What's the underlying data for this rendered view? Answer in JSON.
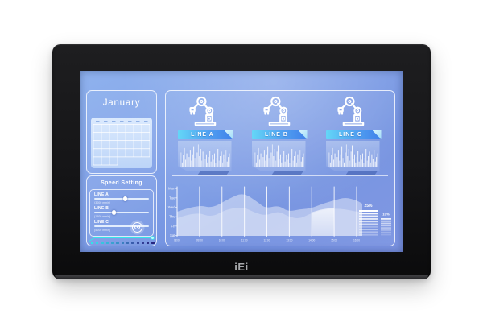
{
  "brand": {
    "logo_text": "iEi"
  },
  "screen": {
    "calendar": {
      "title": "January"
    },
    "speed_setting": {
      "title": "Speed Setting",
      "accent_color": "#35e6ea",
      "sliders": [
        {
          "label": "LINE A",
          "sub_label": "(3000 mm/s)",
          "value_pct": 57,
          "thumb": "dot"
        },
        {
          "label": "LINE B",
          "sub_label": "(1500 mm/s)",
          "value_pct": 36,
          "thumb": "dot"
        },
        {
          "label": "LINE C",
          "sub_label": "(5000 mm/s)",
          "value_pct": 77,
          "thumb": "target"
        }
      ],
      "progress_dot_colors": [
        "#30e5e9",
        "#31d8e5",
        "#33c8df",
        "#35b6d8",
        "#37a4d0",
        "#3992c8",
        "#3a80c0",
        "#3a6eb6",
        "#385cab",
        "#354b9f",
        "#303b93",
        "#2b2f88",
        "#26257e"
      ]
    },
    "stations": [
      {
        "label": "LINE A"
      },
      {
        "label": "LINE B"
      },
      {
        "label": "LINE C"
      }
    ],
    "station_histogram": [
      9,
      16,
      5,
      13,
      21,
      8,
      15,
      4,
      11,
      19,
      7,
      14,
      23,
      10,
      5,
      16,
      25,
      12,
      20,
      7,
      17,
      24,
      9,
      14,
      5,
      11,
      18,
      6,
      13,
      8,
      15,
      4,
      10,
      20,
      7,
      12,
      17,
      5,
      14,
      9,
      19,
      6,
      11,
      15
    ]
  },
  "chart_data": {
    "type": "area",
    "title": "",
    "y_categories": [
      "Mon",
      "Tue",
      "Wed",
      "Thu",
      "Fri",
      "Sat"
    ],
    "x_ticks": [
      "08:00",
      "09:00",
      "10:00",
      "11:00",
      "12:00",
      "13:00",
      "14:00",
      "15:00",
      "16:00"
    ],
    "grid": true,
    "legend": false,
    "series": [
      {
        "name": "back_wave",
        "fill_opacity": 0.42,
        "points": [
          [
            12,
            34
          ],
          [
            38,
            25
          ],
          [
            55,
            30
          ],
          [
            76,
            18
          ],
          [
            94,
            10
          ],
          [
            112,
            22
          ],
          [
            122,
            30
          ],
          [
            138,
            26
          ],
          [
            150,
            34
          ],
          [
            164,
            31
          ],
          [
            178,
            30
          ],
          [
            193,
            24
          ],
          [
            207,
            20
          ],
          [
            221,
            16
          ],
          [
            235,
            20
          ],
          [
            242,
            24
          ]
        ]
      },
      {
        "name": "front_wave",
        "fill_opacity": 0.28,
        "points": [
          [
            12,
            42
          ],
          [
            35,
            34
          ],
          [
            55,
            41
          ],
          [
            73,
            31
          ],
          [
            94,
            28
          ],
          [
            108,
            35
          ],
          [
            122,
            39
          ],
          [
            138,
            33
          ],
          [
            150,
            40
          ],
          [
            164,
            43
          ],
          [
            178,
            36
          ],
          [
            192,
            32
          ],
          [
            207,
            30
          ],
          [
            221,
            31
          ],
          [
            235,
            34
          ],
          [
            242,
            34
          ]
        ]
      }
    ],
    "highlight_span": {
      "from_tick": 6,
      "to_tick": 7
    },
    "gauges": [
      {
        "label": "25%",
        "value_pct": 25,
        "opacities": [
          1,
          0.92,
          0.85,
          0.78,
          0.7,
          0.62,
          0.28,
          0.45,
          0.38,
          0.3
        ]
      },
      {
        "label": "10%",
        "value_pct": 10,
        "opacities": [
          0.85,
          0.72,
          0.6,
          0.5,
          0.42,
          0.34,
          0.26,
          0.18
        ]
      }
    ]
  }
}
